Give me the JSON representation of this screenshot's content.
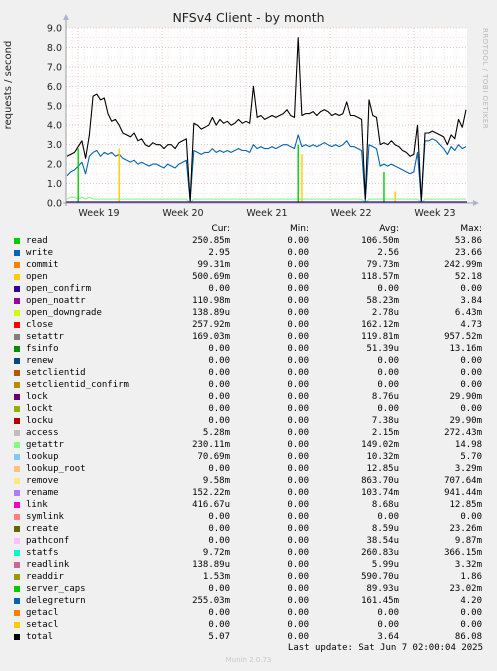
{
  "title": "NFSv4 Client - by month",
  "watermark": "RRDTOOL / TOBI OETIKER",
  "footer": {
    "last_update": "Last update: Sat Jun  7 02:00:04 2025",
    "munin": "Munin 2.0.73"
  },
  "legend_headers": {
    "cur": "Cur:",
    "min": "Min:",
    "avg": "Avg:",
    "max": "Max:"
  },
  "legend": [
    {
      "name": "read",
      "color": "#00cc00",
      "cur": "250.85m",
      "min": "0.00",
      "avg": "106.50m",
      "max": "53.86"
    },
    {
      "name": "write",
      "color": "#0066b3",
      "cur": "2.95",
      "min": "0.00",
      "avg": "2.56",
      "max": "23.66"
    },
    {
      "name": "commit",
      "color": "#ff8000",
      "cur": "99.31m",
      "min": "0.00",
      "avg": "79.73m",
      "max": "242.99m"
    },
    {
      "name": "open",
      "color": "#ffcc00",
      "cur": "500.69m",
      "min": "0.00",
      "avg": "118.57m",
      "max": "52.18"
    },
    {
      "name": "open_confirm",
      "color": "#330099",
      "cur": "0.00",
      "min": "0.00",
      "avg": "0.00",
      "max": "0.00"
    },
    {
      "name": "open_noattr",
      "color": "#990099",
      "cur": "110.98m",
      "min": "0.00",
      "avg": "58.23m",
      "max": "3.84"
    },
    {
      "name": "open_downgrade",
      "color": "#ccff00",
      "cur": "138.89u",
      "min": "0.00",
      "avg": "2.78u",
      "max": "6.43m"
    },
    {
      "name": "close",
      "color": "#ff0000",
      "cur": "257.92m",
      "min": "0.00",
      "avg": "162.12m",
      "max": "4.73"
    },
    {
      "name": "setattr",
      "color": "#808080",
      "cur": "169.03m",
      "min": "0.00",
      "avg": "119.81m",
      "max": "957.52m"
    },
    {
      "name": "fsinfo",
      "color": "#008f00",
      "cur": "0.00",
      "min": "0.00",
      "avg": "51.39u",
      "max": "13.16m"
    },
    {
      "name": "renew",
      "color": "#00487d",
      "cur": "0.00",
      "min": "0.00",
      "avg": "0.00",
      "max": "0.00"
    },
    {
      "name": "setclientid",
      "color": "#b35a00",
      "cur": "0.00",
      "min": "0.00",
      "avg": "0.00",
      "max": "0.00"
    },
    {
      "name": "setclientid_confirm",
      "color": "#b38f00",
      "cur": "0.00",
      "min": "0.00",
      "avg": "0.00",
      "max": "0.00"
    },
    {
      "name": "lock",
      "color": "#6b006b",
      "cur": "0.00",
      "min": "0.00",
      "avg": "8.76u",
      "max": "29.90m"
    },
    {
      "name": "lockt",
      "color": "#8fb300",
      "cur": "0.00",
      "min": "0.00",
      "avg": "0.00",
      "max": "0.00"
    },
    {
      "name": "locku",
      "color": "#b30000",
      "cur": "0.00",
      "min": "0.00",
      "avg": "7.38u",
      "max": "29.90m"
    },
    {
      "name": "access",
      "color": "#bebebe",
      "cur": "5.28m",
      "min": "0.00",
      "avg": "2.15m",
      "max": "272.43m"
    },
    {
      "name": "getattr",
      "color": "#80ff80",
      "cur": "230.11m",
      "min": "0.00",
      "avg": "149.02m",
      "max": "14.98"
    },
    {
      "name": "lookup",
      "color": "#80c9ff",
      "cur": "70.69m",
      "min": "0.00",
      "avg": "10.32m",
      "max": "5.70"
    },
    {
      "name": "lookup_root",
      "color": "#ffc080",
      "cur": "0.00",
      "min": "0.00",
      "avg": "12.85u",
      "max": "3.29m"
    },
    {
      "name": "remove",
      "color": "#ffe680",
      "cur": "9.58m",
      "min": "0.00",
      "avg": "863.70u",
      "max": "707.64m"
    },
    {
      "name": "rename",
      "color": "#aa80ff",
      "cur": "152.22m",
      "min": "0.00",
      "avg": "103.74m",
      "max": "941.44m"
    },
    {
      "name": "link",
      "color": "#ee00cc",
      "cur": "416.67u",
      "min": "0.00",
      "avg": "8.68u",
      "max": "12.85m"
    },
    {
      "name": "symlink",
      "color": "#ff8080",
      "cur": "0.00",
      "min": "0.00",
      "avg": "0.00",
      "max": "0.00"
    },
    {
      "name": "create",
      "color": "#666600",
      "cur": "0.00",
      "min": "0.00",
      "avg": "8.59u",
      "max": "23.26m"
    },
    {
      "name": "pathconf",
      "color": "#ffbfff",
      "cur": "0.00",
      "min": "0.00",
      "avg": "38.54u",
      "max": "9.87m"
    },
    {
      "name": "statfs",
      "color": "#00ffcc",
      "cur": "9.72m",
      "min": "0.00",
      "avg": "260.83u",
      "max": "366.15m"
    },
    {
      "name": "readlink",
      "color": "#cc6699",
      "cur": "138.89u",
      "min": "0.00",
      "avg": "5.99u",
      "max": "3.32m"
    },
    {
      "name": "readdir",
      "color": "#999900",
      "cur": "1.53m",
      "min": "0.00",
      "avg": "590.70u",
      "max": "1.86"
    },
    {
      "name": "server_caps",
      "color": "#00cc00",
      "cur": "0.00",
      "min": "0.00",
      "avg": "89.93u",
      "max": "23.02m"
    },
    {
      "name": "delegreturn",
      "color": "#0066b3",
      "cur": "255.03m",
      "min": "0.00",
      "avg": "161.45m",
      "max": "4.20"
    },
    {
      "name": "getacl",
      "color": "#ff8000",
      "cur": "0.00",
      "min": "0.00",
      "avg": "0.00",
      "max": "0.00"
    },
    {
      "name": "setacl",
      "color": "#ffcc00",
      "cur": "0.00",
      "min": "0.00",
      "avg": "0.00",
      "max": "0.00"
    },
    {
      "name": "total",
      "color": "#000000",
      "cur": "5.07",
      "min": "0.00",
      "avg": "3.64",
      "max": "86.08"
    }
  ],
  "chart_data": {
    "type": "line",
    "title": "NFSv4 Client - by month",
    "ylabel": "requests / second",
    "xlabel": "",
    "ylim": [
      0,
      9
    ],
    "yticks": [
      "0.0",
      "1.0",
      "2.0",
      "3.0",
      "4.0",
      "5.0",
      "6.0",
      "7.0",
      "8.0",
      "9.0"
    ],
    "x_tick_labels": [
      "Week 19",
      "Week 20",
      "Week 21",
      "Week 22",
      "Week 23"
    ],
    "grid": true,
    "series": [
      {
        "name": "total",
        "color": "#000000",
        "values": [
          2.4,
          2.5,
          2.6,
          2.9,
          3.2,
          2.3,
          3.5,
          5.5,
          5.6,
          5.3,
          5.4,
          4.6,
          4.2,
          4.3,
          4.0,
          3.6,
          3.5,
          3.4,
          3.6,
          3.2,
          3.3,
          3.0,
          2.9,
          3.1,
          3.0,
          3.0,
          2.8,
          3.0,
          3.0,
          2.8,
          3.1,
          3.2,
          3.3,
          0.1,
          4.1,
          4.0,
          3.8,
          3.9,
          4.0,
          4.4,
          4.0,
          4.3,
          4.1,
          4.2,
          4.0,
          4.1,
          4.3,
          4.1,
          4.2,
          4.1,
          6.0,
          4.4,
          4.5,
          4.3,
          4.4,
          4.5,
          4.4,
          4.5,
          4.6,
          4.8,
          4.5,
          4.4,
          8.5,
          4.5,
          4.6,
          4.6,
          4.7,
          4.5,
          4.7,
          4.8,
          4.7,
          4.5,
          4.6,
          4.5,
          4.6,
          5.2,
          4.5,
          4.5,
          4.4,
          4.3,
          0.2,
          5.3,
          4.5,
          4.4,
          3.0,
          3.1,
          3.0,
          3.2,
          3.0,
          2.9,
          2.7,
          2.6,
          2.4,
          2.5,
          4.0,
          0.1,
          3.6,
          3.6,
          3.7,
          3.6,
          3.5,
          3.4,
          3.0,
          3.5,
          3.3,
          4.3,
          3.9,
          4.8
        ]
      },
      {
        "name": "write",
        "color": "#0066b3",
        "values": [
          1.4,
          1.6,
          1.7,
          1.9,
          2.1,
          1.5,
          2.4,
          2.6,
          2.7,
          2.4,
          2.6,
          2.5,
          2.6,
          2.4,
          2.5,
          2.3,
          2.2,
          2.1,
          2.2,
          2.0,
          2.1,
          2.0,
          1.9,
          2.0,
          2.0,
          1.9,
          1.8,
          2.0,
          1.9,
          1.8,
          2.0,
          2.1,
          2.2,
          0.1,
          2.7,
          2.6,
          2.5,
          2.6,
          2.6,
          2.8,
          2.6,
          2.7,
          2.6,
          2.7,
          2.6,
          2.7,
          2.8,
          2.7,
          2.7,
          2.6,
          3.0,
          2.8,
          2.9,
          2.8,
          2.8,
          2.9,
          2.8,
          2.9,
          3.0,
          3.0,
          2.9,
          2.8,
          3.5,
          2.9,
          3.0,
          2.9,
          3.0,
          2.9,
          3.0,
          3.1,
          3.0,
          2.9,
          3.0,
          2.9,
          3.0,
          3.2,
          2.9,
          2.9,
          2.8,
          2.7,
          0.1,
          3.0,
          2.9,
          2.8,
          1.9,
          2.0,
          1.9,
          2.0,
          1.9,
          1.8,
          1.7,
          1.6,
          1.5,
          1.6,
          2.6,
          0.1,
          3.2,
          3.2,
          3.3,
          3.2,
          3.0,
          2.8,
          2.5,
          2.9,
          2.7,
          3.0,
          2.8,
          2.9
        ]
      },
      {
        "name": "getattr",
        "color": "#80ff80",
        "values": [
          0.2,
          0.3,
          0.3,
          0.2,
          0.3,
          0.2,
          0.3,
          0.2,
          0.2,
          0.2,
          0.2,
          0.2,
          0.2,
          0.2,
          0.2,
          0.2,
          0.2,
          0.2,
          0.2,
          0.2,
          0.2,
          0.2,
          0.2,
          0.2,
          0.2,
          0.2,
          0.2,
          0.2,
          0.2,
          0.2,
          0.2,
          0.2,
          0.2,
          0.0,
          0.2,
          0.2,
          0.2,
          0.2,
          0.2,
          0.2,
          0.2,
          0.2,
          0.2,
          0.2,
          0.2,
          0.2,
          0.2,
          0.2,
          0.2,
          0.2,
          0.2,
          0.2,
          0.2,
          0.2,
          0.2,
          0.2,
          0.2,
          0.2,
          0.2,
          0.2,
          0.2,
          0.2,
          0.2,
          0.2,
          0.2,
          0.2,
          0.2,
          0.2,
          0.2,
          0.2,
          0.2,
          0.2,
          0.2,
          0.2,
          0.2,
          0.2,
          0.2,
          0.2,
          0.2,
          0.2,
          0.0,
          0.2,
          0.2,
          0.2,
          0.2,
          0.2,
          0.2,
          0.2,
          0.2,
          0.2,
          0.2,
          0.2,
          0.2,
          0.2,
          0.2,
          0.0,
          0.2,
          0.2,
          0.2,
          0.2,
          0.2,
          0.2,
          0.2,
          0.2,
          0.2,
          0.2,
          0.2,
          0.2
        ]
      }
    ],
    "spikes": [
      {
        "series": "read",
        "color": "#00cc00",
        "index": 3,
        "value": 2.8
      },
      {
        "series": "open",
        "color": "#ffcc00",
        "index": 14,
        "value": 2.8
      },
      {
        "series": "read",
        "color": "#00cc00",
        "index": 62,
        "value": 3.0
      },
      {
        "series": "open",
        "color": "#ffcc00",
        "index": 63,
        "value": 2.5
      },
      {
        "series": "read",
        "color": "#00cc00",
        "index": 85,
        "value": 1.6
      },
      {
        "series": "open",
        "color": "#ffcc00",
        "index": 88,
        "value": 0.6
      }
    ]
  }
}
